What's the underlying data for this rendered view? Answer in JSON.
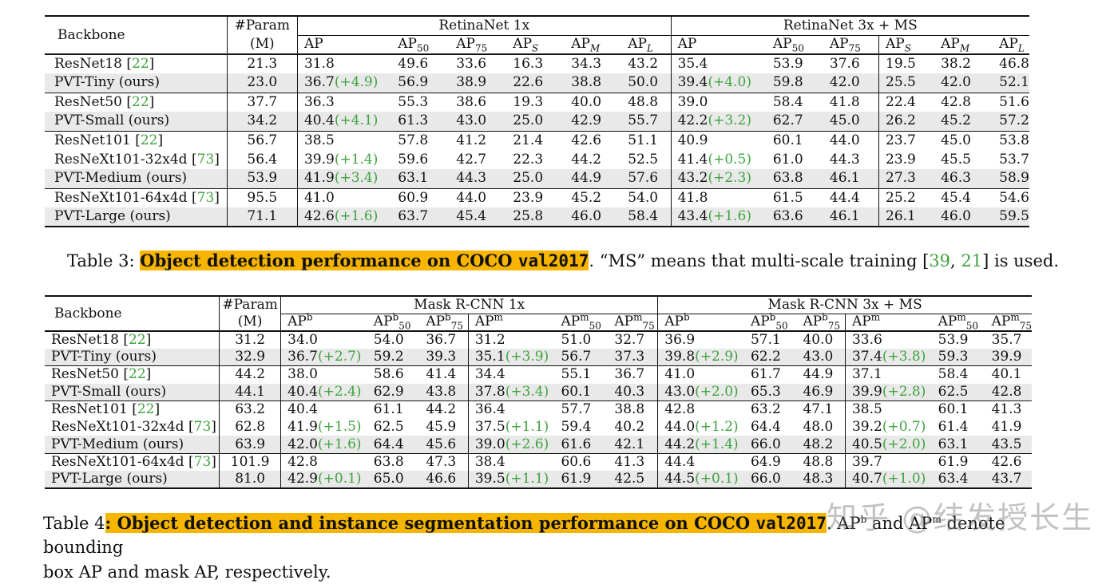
{
  "table3": {
    "backbone_header": "Backbone",
    "param_header_1": "#Param",
    "param_header_2": "(M)",
    "group1": "RetinaNet 1x",
    "group2": "RetinaNet 3x + MS",
    "metric_headers": [
      "AP",
      "AP50",
      "AP75",
      "APS",
      "APM",
      "APL",
      "AP",
      "AP50",
      "AP75",
      "APS",
      "APM",
      "APL"
    ],
    "rows": [
      {
        "name": "ResNet18",
        "cite": "22",
        "param": "21.3",
        "c": [
          "31.8",
          "49.6",
          "33.6",
          "16.3",
          "34.3",
          "43.2",
          "35.4",
          "53.9",
          "37.6",
          "19.5",
          "38.2",
          "46.8"
        ],
        "g1": "",
        "g2": "",
        "shade": false,
        "sep": false
      },
      {
        "name": "PVT-Tiny (ours)",
        "cite": "",
        "param": "23.0",
        "c": [
          "36.7",
          "56.9",
          "38.9",
          "22.6",
          "38.8",
          "50.0",
          "39.4",
          "59.8",
          "42.0",
          "25.5",
          "42.0",
          "52.1"
        ],
        "g1": "(+4.9)",
        "g2": "(+4.0)",
        "shade": true,
        "sep": false
      },
      {
        "name": "ResNet50",
        "cite": "22",
        "param": "37.7",
        "c": [
          "36.3",
          "55.3",
          "38.6",
          "19.3",
          "40.0",
          "48.8",
          "39.0",
          "58.4",
          "41.8",
          "22.4",
          "42.8",
          "51.6"
        ],
        "g1": "",
        "g2": "",
        "shade": false,
        "sep": true
      },
      {
        "name": "PVT-Small (ours)",
        "cite": "",
        "param": "34.2",
        "c": [
          "40.4",
          "61.3",
          "43.0",
          "25.0",
          "42.9",
          "55.7",
          "42.2",
          "62.7",
          "45.0",
          "26.2",
          "45.2",
          "57.2"
        ],
        "g1": "(+4.1)",
        "g2": "(+3.2)",
        "shade": true,
        "sep": false
      },
      {
        "name": "ResNet101",
        "cite": "22",
        "param": "56.7",
        "c": [
          "38.5",
          "57.8",
          "41.2",
          "21.4",
          "42.6",
          "51.1",
          "40.9",
          "60.1",
          "44.0",
          "23.7",
          "45.0",
          "53.8"
        ],
        "g1": "",
        "g2": "",
        "shade": false,
        "sep": true
      },
      {
        "name": "ResNeXt101-32x4d",
        "cite": "73",
        "param": "56.4",
        "c": [
          "39.9",
          "59.6",
          "42.7",
          "22.3",
          "44.2",
          "52.5",
          "41.4",
          "61.0",
          "44.3",
          "23.9",
          "45.5",
          "53.7"
        ],
        "g1": "(+1.4)",
        "g2": "(+0.5)",
        "shade": false,
        "sep": false
      },
      {
        "name": "PVT-Medium (ours)",
        "cite": "",
        "param": "53.9",
        "c": [
          "41.9",
          "63.1",
          "44.3",
          "25.0",
          "44.9",
          "57.6",
          "43.2",
          "63.8",
          "46.1",
          "27.3",
          "46.3",
          "58.9"
        ],
        "g1": "(+3.4)",
        "g2": "(+2.3)",
        "shade": true,
        "sep": false
      },
      {
        "name": "ResNeXt101-64x4d",
        "cite": "73",
        "param": "95.5",
        "c": [
          "41.0",
          "60.9",
          "44.0",
          "23.9",
          "45.2",
          "54.0",
          "41.8",
          "61.5",
          "44.4",
          "25.2",
          "45.4",
          "54.6"
        ],
        "g1": "",
        "g2": "",
        "shade": false,
        "sep": true
      },
      {
        "name": "PVT-Large (ours)",
        "cite": "",
        "param": "71.1",
        "c": [
          "42.6",
          "63.7",
          "45.4",
          "25.8",
          "46.0",
          "58.4",
          "43.4",
          "63.6",
          "46.1",
          "26.1",
          "46.0",
          "59.5"
        ],
        "g1": "(+1.6)",
        "g2": "(+1.6)",
        "shade": true,
        "sep": false
      }
    ],
    "caption_prefix": "Table 3: ",
    "caption_bold": "Object detection performance on COCO ",
    "caption_mono": "val2017",
    "caption_rest": ". “MS” means that multi-scale training [",
    "caption_cite1": "39",
    "caption_comma": ", ",
    "caption_cite2": "21",
    "caption_end": "] is used."
  },
  "table4": {
    "backbone_header": "Backbone",
    "param_header_1": "#Param",
    "param_header_2": "(M)",
    "group1": "Mask R-CNN 1x",
    "group2": "Mask R-CNN 3x + MS",
    "rows": [
      {
        "name": "ResNet18",
        "cite": "22",
        "param": "31.2",
        "c": [
          "34.0",
          "54.0",
          "36.7",
          "31.2",
          "51.0",
          "32.7",
          "36.9",
          "57.1",
          "40.0",
          "33.6",
          "53.9",
          "35.7"
        ],
        "g": [
          "",
          "",
          "",
          "",
          "",
          ""
        ],
        "shade": false,
        "sep": false
      },
      {
        "name": "PVT-Tiny (ours)",
        "cite": "",
        "param": "32.9",
        "c": [
          "36.7",
          "59.2",
          "39.3",
          "35.1",
          "56.7",
          "37.3",
          "39.8",
          "62.2",
          "43.0",
          "37.4",
          "59.3",
          "39.9"
        ],
        "g": [
          "(+2.7)",
          "(+3.9)",
          "(+2.9)",
          "(+3.8)"
        ],
        "shade": true,
        "sep": false
      },
      {
        "name": "ResNet50",
        "cite": "22",
        "param": "44.2",
        "c": [
          "38.0",
          "58.6",
          "41.4",
          "34.4",
          "55.1",
          "36.7",
          "41.0",
          "61.7",
          "44.9",
          "37.1",
          "58.4",
          "40.1"
        ],
        "g": [
          "",
          "",
          "",
          ""
        ],
        "shade": false,
        "sep": true
      },
      {
        "name": "PVT-Small (ours)",
        "cite": "",
        "param": "44.1",
        "c": [
          "40.4",
          "62.9",
          "43.8",
          "37.8",
          "60.1",
          "40.3",
          "43.0",
          "65.3",
          "46.9",
          "39.9",
          "62.5",
          "42.8"
        ],
        "g": [
          "(+2.4)",
          "(+3.4)",
          "(+2.0)",
          "(+2.8)"
        ],
        "shade": true,
        "sep": false
      },
      {
        "name": "ResNet101",
        "cite": "22",
        "param": "63.2",
        "c": [
          "40.4",
          "61.1",
          "44.2",
          "36.4",
          "57.7",
          "38.8",
          "42.8",
          "63.2",
          "47.1",
          "38.5",
          "60.1",
          "41.3"
        ],
        "g": [
          "",
          "",
          "",
          ""
        ],
        "shade": false,
        "sep": true
      },
      {
        "name": "ResNeXt101-32x4d",
        "cite": "73",
        "param": "62.8",
        "c": [
          "41.9",
          "62.5",
          "45.9",
          "37.5",
          "59.4",
          "40.2",
          "44.0",
          "64.4",
          "48.0",
          "39.2",
          "61.4",
          "41.9"
        ],
        "g": [
          "(+1.5)",
          "(+1.1)",
          "(+1.2)",
          "(+0.7)"
        ],
        "shade": false,
        "sep": false
      },
      {
        "name": "PVT-Medium (ours)",
        "cite": "",
        "param": "63.9",
        "c": [
          "42.0",
          "64.4",
          "45.6",
          "39.0",
          "61.6",
          "42.1",
          "44.2",
          "66.0",
          "48.2",
          "40.5",
          "63.1",
          "43.5"
        ],
        "g": [
          "(+1.6)",
          "(+2.6)",
          "(+1.4)",
          "(+2.0)"
        ],
        "shade": true,
        "sep": false
      },
      {
        "name": "ResNeXt101-64x4d",
        "cite": "73",
        "param": "101.9",
        "c": [
          "42.8",
          "63.8",
          "47.3",
          "38.4",
          "60.6",
          "41.3",
          "44.4",
          "64.9",
          "48.8",
          "39.7",
          "61.9",
          "42.6"
        ],
        "g": [
          "",
          "",
          "",
          ""
        ],
        "shade": false,
        "sep": true
      },
      {
        "name": "PVT-Large (ours)",
        "cite": "",
        "param": "81.0",
        "c": [
          "42.9",
          "65.0",
          "46.6",
          "39.5",
          "61.9",
          "42.5",
          "44.5",
          "66.0",
          "48.3",
          "40.7",
          "63.4",
          "43.7"
        ],
        "g": [
          "(+0.1)",
          "(+1.1)",
          "(+0.1)",
          "(+1.0)"
        ],
        "shade": true,
        "sep": false
      }
    ],
    "caption_prefix": "Table 4",
    "caption_colon": ": ",
    "caption_bold": "Object detection and instance segmentation performance on COCO ",
    "caption_mono": "val2017",
    "caption_rest": ". AP",
    "caption_sup_b": "b",
    "caption_and": " and AP",
    "caption_sup_m": "m",
    "caption_tail": " denote bounding",
    "caption_line2": "box AP and mask AP, respectively."
  },
  "watermark": "知乎 @结发授长生"
}
